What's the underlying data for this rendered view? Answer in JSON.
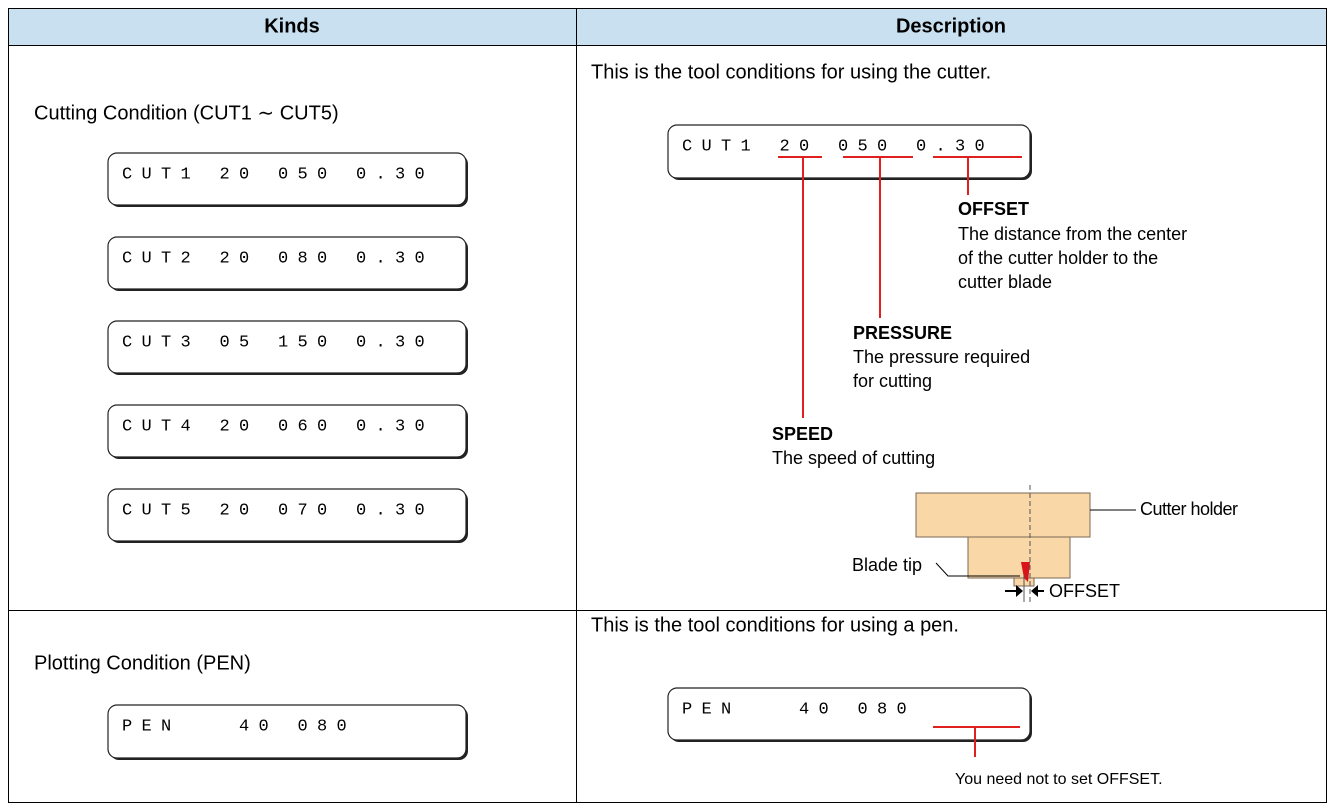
{
  "header": {
    "kinds": "Kinds",
    "description": "Description"
  },
  "rows": [
    {
      "kind": "Cutting Condition (CUT1 ∼ CUT5)",
      "displays": [
        "CUT1 20 050 0.30",
        "CUT2 20 080 0.30",
        "CUT3 05 150 0.30",
        "CUT4 20 060 0.30",
        "CUT5 20 070 0.30"
      ],
      "description": {
        "intro": "This is the tool conditions for using the cutter.",
        "display": "CUT1 20 050 0.30",
        "callouts": [
          {
            "title": "OFFSET",
            "lines": [
              "The distance from the center",
              "of the cutter holder to the",
              "cutter blade"
            ]
          },
          {
            "title": "PRESSURE",
            "lines": [
              "The pressure required",
              "for cutting"
            ]
          },
          {
            "title": "SPEED",
            "lines": [
              "The speed of cutting"
            ]
          }
        ],
        "diagram": {
          "holder": "Cutter holder",
          "blade_tip": "Blade tip",
          "offset": "OFFSET"
        }
      }
    },
    {
      "kind": "Plotting Condition (PEN)",
      "displays": [
        "PEN   40 080"
      ],
      "description": {
        "intro": "This is the tool conditions for using a pen.",
        "display": "PEN   40 080",
        "note": "You need not to set OFFSET."
      }
    }
  ]
}
